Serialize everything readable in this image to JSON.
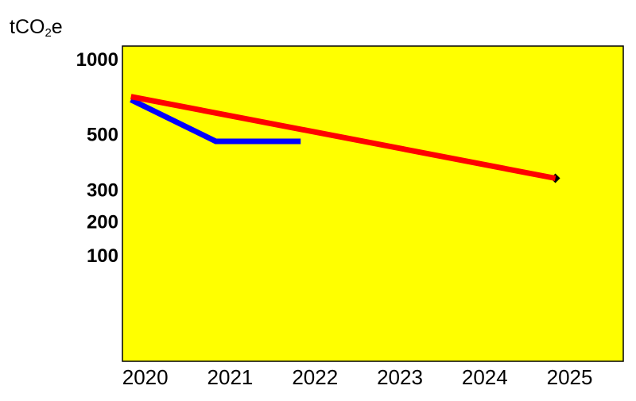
{
  "chart_data": {
    "type": "line",
    "ylabel": {
      "prefix": "tCO",
      "sub": "2",
      "suffix": "e"
    },
    "ytick_values": [
      1000,
      500,
      300,
      200,
      100
    ],
    "y_reference": [
      {
        "value": 1000,
        "y_rel": 0.0
      },
      {
        "value": 500,
        "y_rel": 0.31
      },
      {
        "value": 300,
        "y_rel": 0.54
      },
      {
        "value": 200,
        "y_rel": 0.67
      },
      {
        "value": 100,
        "y_rel": 0.81
      }
    ],
    "x_categories": [
      "2020",
      "2021",
      "2022",
      "2023",
      "2024",
      "2025"
    ],
    "xlim": [
      2019.9,
      2025.8
    ],
    "background": "#ffff00",
    "series": [
      {
        "color": "#0000ff",
        "points": [
          [
            2020,
            690
          ],
          [
            2021,
            470
          ],
          [
            2022,
            470
          ]
        ]
      },
      {
        "color": "#ff0000",
        "points": [
          [
            2020,
            710
          ],
          [
            2025,
            335
          ]
        ]
      }
    ],
    "markers": [
      {
        "x": 2025,
        "y": 335,
        "color": "#000000"
      }
    ]
  }
}
